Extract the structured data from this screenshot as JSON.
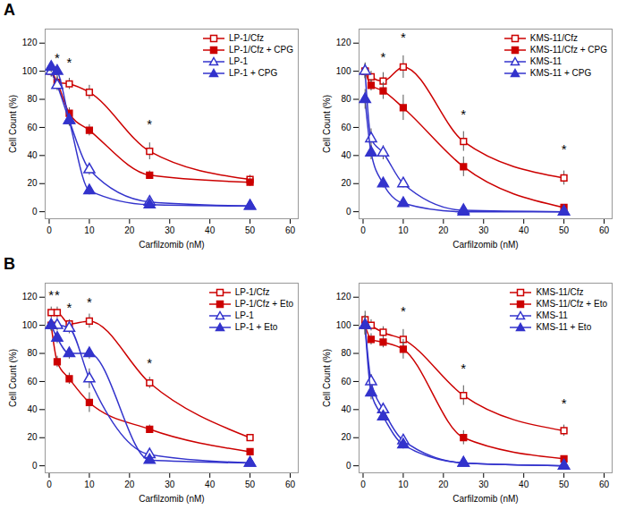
{
  "chart_data": [
    {
      "type": "line",
      "title": "A",
      "x_label": "Carfilzomib (nM)",
      "y_label": "Cell Count (%)",
      "xlim": [
        -1,
        62
      ],
      "xticks": [
        0,
        10,
        20,
        30,
        40,
        50,
        60
      ],
      "ylim": [
        -5,
        130
      ],
      "yticks": [
        0,
        20,
        40,
        60,
        80,
        100,
        120
      ],
      "grid": false,
      "legend": "upper right",
      "x": [
        0.5,
        2,
        5,
        10,
        25,
        50
      ],
      "series": [
        {
          "name": "LP-1/Cfz",
          "color": "#cc0000",
          "marker": "square-open",
          "values": [
            100,
            92,
            91,
            85,
            43,
            23
          ],
          "yerr": [
            4,
            4,
            4,
            5,
            6,
            3
          ]
        },
        {
          "name": "LP-1/Cfz + CPG",
          "color": "#cc0000",
          "marker": "square-filled",
          "values": [
            101,
            92,
            70,
            58,
            26,
            21
          ],
          "yerr": [
            4,
            4,
            4,
            4,
            3,
            3
          ]
        },
        {
          "name": "LP-1",
          "color": "#3333cc",
          "marker": "triangle-open",
          "values": [
            100,
            90,
            65,
            30,
            7,
            4
          ],
          "yerr": [
            4,
            4,
            4,
            4,
            2,
            1
          ]
        },
        {
          "name": "LP-1 + CPG",
          "color": "#3333cc",
          "marker": "triangle-filled",
          "values": [
            103,
            100,
            65,
            15,
            5,
            4
          ],
          "yerr": [
            4,
            4,
            4,
            3,
            1,
            1
          ]
        }
      ],
      "annotations": [
        {
          "text": "*",
          "x": 2,
          "y": 106
        },
        {
          "text": "*",
          "x": 5,
          "y": 103
        },
        {
          "text": "*",
          "x": 25,
          "y": 59
        }
      ]
    },
    {
      "type": "line",
      "x_label": "Carfilzomib (nM)",
      "y_label": "Cell Count (%)",
      "xlim": [
        -1,
        62
      ],
      "xticks": [
        0,
        10,
        20,
        30,
        40,
        50,
        60
      ],
      "ylim": [
        -5,
        130
      ],
      "yticks": [
        0,
        20,
        40,
        60,
        80,
        100,
        120
      ],
      "grid": false,
      "legend": "upper right",
      "x": [
        0.5,
        2,
        5,
        10,
        25,
        50
      ],
      "series": [
        {
          "name": "KMS-11/Cfz",
          "color": "#cc0000",
          "marker": "square-open",
          "values": [
            100,
            96,
            93,
            103,
            50,
            24
          ],
          "yerr": [
            5,
            4,
            6,
            8,
            7,
            5
          ]
        },
        {
          "name": "KMS-11/Cfz + CPG",
          "color": "#cc0000",
          "marker": "square-filled",
          "values": [
            100,
            90,
            86,
            74,
            32,
            3
          ],
          "yerr": [
            5,
            4,
            6,
            9,
            7,
            2
          ]
        },
        {
          "name": "KMS-11",
          "color": "#3333cc",
          "marker": "triangle-open",
          "values": [
            100,
            52,
            42,
            20,
            1,
            0
          ],
          "yerr": [
            6,
            7,
            5,
            3,
            1,
            1
          ]
        },
        {
          "name": "KMS-11 + CPG",
          "color": "#3333cc",
          "marker": "triangle-filled",
          "values": [
            80,
            42,
            20,
            6,
            0,
            0
          ],
          "yerr": [
            7,
            5,
            3,
            2,
            1,
            1
          ]
        }
      ],
      "annotations": [
        {
          "text": "*",
          "x": 5,
          "y": 107
        },
        {
          "text": "*",
          "x": 10,
          "y": 121
        },
        {
          "text": "*",
          "x": 25,
          "y": 66
        },
        {
          "text": "*",
          "x": 50,
          "y": 41
        }
      ]
    },
    {
      "type": "line",
      "title": "B",
      "x_label": "Carfilzomib (nM)",
      "y_label": "Cell Count (%)",
      "xlim": [
        -1,
        62
      ],
      "xticks": [
        0,
        10,
        20,
        30,
        40,
        50,
        60
      ],
      "ylim": [
        -5,
        130
      ],
      "yticks": [
        0,
        20,
        40,
        60,
        80,
        100,
        120
      ],
      "grid": false,
      "legend": "upper right",
      "x": [
        0.5,
        2,
        5,
        10,
        25,
        50
      ],
      "series": [
        {
          "name": "LP-1/Cfz",
          "color": "#cc0000",
          "marker": "square-open",
          "values": [
            109,
            109,
            101,
            103,
            59,
            20
          ],
          "yerr": [
            4,
            4,
            3,
            5,
            4,
            2
          ]
        },
        {
          "name": "LP-1/Cfz + Eto",
          "color": "#cc0000",
          "marker": "square-filled",
          "values": [
            100,
            74,
            62,
            45,
            26,
            10
          ],
          "yerr": [
            4,
            4,
            4,
            7,
            3,
            2
          ]
        },
        {
          "name": "LP-1",
          "color": "#3333cc",
          "marker": "triangle-open",
          "values": [
            100,
            100,
            98,
            62,
            8,
            2
          ],
          "yerr": [
            4,
            4,
            4,
            7,
            2,
            1
          ]
        },
        {
          "name": "LP-1 + Eto",
          "color": "#3333cc",
          "marker": "triangle-filled",
          "values": [
            100,
            91,
            80,
            80,
            4,
            2
          ],
          "yerr": [
            4,
            4,
            4,
            4,
            1,
            1
          ]
        }
      ],
      "annotations": [
        {
          "text": "*",
          "x": 0.5,
          "y": 118
        },
        {
          "text": "*",
          "x": 2,
          "y": 118
        },
        {
          "text": "*",
          "x": 5,
          "y": 109
        },
        {
          "text": "*",
          "x": 10,
          "y": 113
        },
        {
          "text": "*",
          "x": 25,
          "y": 70
        }
      ]
    },
    {
      "type": "line",
      "x_label": "Carfilzomib (nM)",
      "y_label": "Cell Count (%)",
      "xlim": [
        -1,
        62
      ],
      "xticks": [
        0,
        10,
        20,
        30,
        40,
        50,
        60
      ],
      "ylim": [
        -5,
        130
      ],
      "yticks": [
        0,
        20,
        40,
        60,
        80,
        100,
        120
      ],
      "grid": false,
      "legend": "upper right",
      "x": [
        0.5,
        2,
        5,
        10,
        25,
        50
      ],
      "series": [
        {
          "name": "KMS-11/Cfz",
          "color": "#cc0000",
          "marker": "square-open",
          "values": [
            104,
            100,
            95,
            90,
            50,
            25
          ],
          "yerr": [
            6,
            4,
            4,
            7,
            7,
            4
          ]
        },
        {
          "name": "KMS-11/Cfz + Eto",
          "color": "#cc0000",
          "marker": "square-filled",
          "values": [
            100,
            90,
            88,
            83,
            20,
            5
          ],
          "yerr": [
            6,
            4,
            4,
            7,
            5,
            2
          ]
        },
        {
          "name": "KMS-11",
          "color": "#3333cc",
          "marker": "triangle-open",
          "values": [
            100,
            60,
            40,
            18,
            2,
            0
          ],
          "yerr": [
            7,
            5,
            4,
            3,
            1,
            1
          ]
        },
        {
          "name": "KMS-11 + Eto",
          "color": "#3333cc",
          "marker": "triangle-filled",
          "values": [
            100,
            52,
            35,
            15,
            2,
            0
          ],
          "yerr": [
            7,
            5,
            3,
            3,
            1,
            1
          ]
        }
      ],
      "annotations": [
        {
          "text": "*",
          "x": 10,
          "y": 107
        },
        {
          "text": "*",
          "x": 25,
          "y": 66
        },
        {
          "text": "*",
          "x": 50,
          "y": 41
        }
      ]
    }
  ]
}
